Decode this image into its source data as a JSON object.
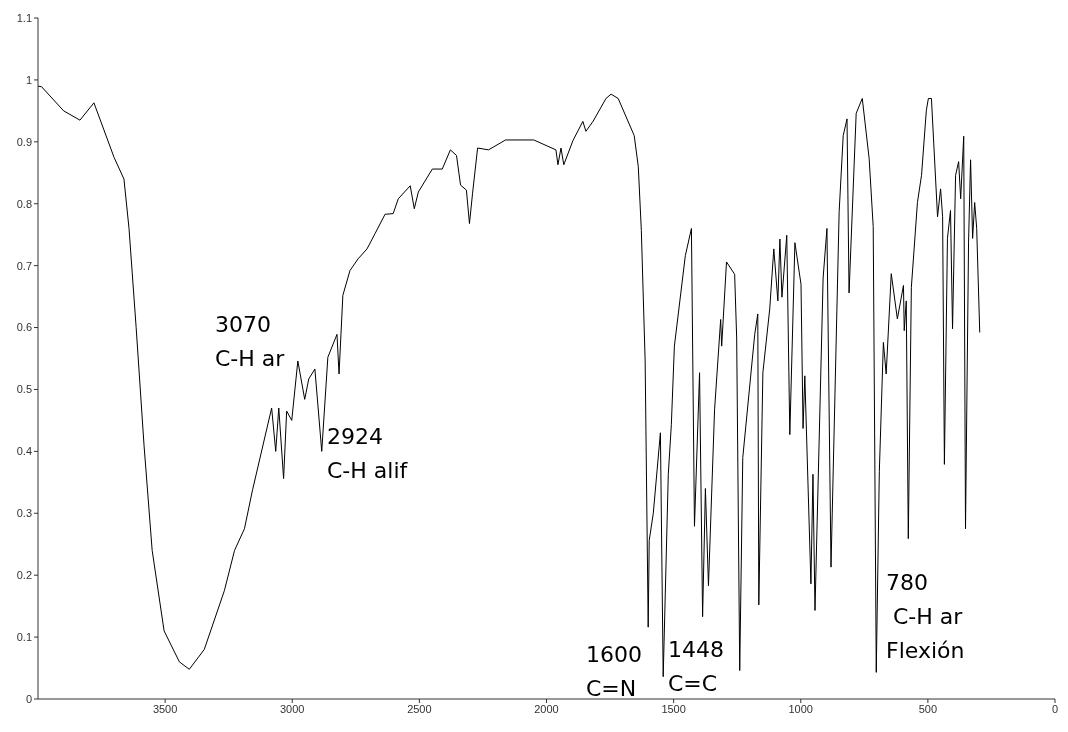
{
  "chart_data": {
    "type": "line",
    "x": [
      4000,
      3986,
      3899,
      3835,
      3780,
      3701,
      3662,
      3642,
      3614,
      3583,
      3551,
      3504,
      3444,
      3405,
      3346,
      3267,
      3227,
      3188,
      3156,
      3081,
      3065,
      3053,
      3034,
      3022,
      3002,
      2978,
      2951,
      2935,
      2911,
      2884,
      2860,
      2824,
      2816,
      2801,
      2773,
      2741,
      2706,
      2674,
      2635,
      2603,
      2583,
      2536,
      2520,
      2504,
      2449,
      2410,
      2378,
      2354,
      2338,
      2315,
      2303,
      2291,
      2271,
      2228,
      2161,
      2050,
      1963,
      1955,
      1943,
      1932,
      1896,
      1857,
      1845,
      1817,
      1766,
      1746,
      1718,
      1655,
      1639,
      1627,
      1612,
      1600,
      1596,
      1580,
      1552,
      1541,
      1521,
      1509,
      1497,
      1454,
      1430,
      1418,
      1398,
      1386,
      1375,
      1363,
      1339,
      1315,
      1311,
      1292,
      1260,
      1252,
      1240,
      1228,
      1181,
      1169,
      1165,
      1149,
      1122,
      1106,
      1090,
      1082,
      1074,
      1055,
      1043,
      1023,
      999,
      991,
      984,
      960,
      952,
      944,
      912,
      897,
      881,
      849,
      833,
      818,
      810,
      782,
      758,
      731,
      715,
      703,
      691,
      675,
      664,
      644,
      620,
      596,
      593,
      585,
      577,
      565,
      541,
      525,
      506,
      498,
      486,
      478,
      462,
      450,
      442,
      435,
      423,
      411,
      403,
      391,
      379,
      371,
      359,
      352,
      340,
      332,
      324,
      316,
      308,
      296
    ],
    "series": [
      {
        "color": "#000000",
        "values": [
          0.99,
          0.989,
          0.95,
          0.935,
          0.963,
          0.875,
          0.84,
          0.76,
          0.6,
          0.41,
          0.24,
          0.11,
          0.06,
          0.048,
          0.08,
          0.175,
          0.24,
          0.275,
          0.338,
          0.47,
          0.4,
          0.47,
          0.356,
          0.465,
          0.45,
          0.546,
          0.484,
          0.517,
          0.533,
          0.4,
          0.552,
          0.589,
          0.525,
          0.652,
          0.692,
          0.711,
          0.727,
          0.752,
          0.783,
          0.784,
          0.808,
          0.829,
          0.792,
          0.819,
          0.856,
          0.856,
          0.887,
          0.878,
          0.83,
          0.822,
          0.768,
          0.816,
          0.89,
          0.887,
          0.903,
          0.903,
          0.887,
          0.863,
          0.89,
          0.863,
          0.902,
          0.933,
          0.917,
          0.933,
          0.97,
          0.977,
          0.97,
          0.91,
          0.86,
          0.757,
          0.546,
          0.116,
          0.256,
          0.3,
          0.43,
          0.036,
          0.363,
          0.443,
          0.57,
          0.716,
          0.76,
          0.279,
          0.527,
          0.133,
          0.34,
          0.183,
          0.467,
          0.613,
          0.57,
          0.706,
          0.686,
          0.583,
          0.046,
          0.39,
          0.589,
          0.622,
          0.152,
          0.527,
          0.63,
          0.727,
          0.643,
          0.743,
          0.649,
          0.749,
          0.427,
          0.737,
          0.67,
          0.437,
          0.522,
          0.186,
          0.363,
          0.143,
          0.68,
          0.76,
          0.213,
          0.787,
          0.91,
          0.937,
          0.656,
          0.946,
          0.97,
          0.873,
          0.763,
          0.043,
          0.367,
          0.576,
          0.525,
          0.687,
          0.614,
          0.668,
          0.595,
          0.643,
          0.259,
          0.665,
          0.802,
          0.846,
          0.951,
          0.97,
          0.97,
          0.906,
          0.779,
          0.824,
          0.779,
          0.379,
          0.744,
          0.789,
          0.598,
          0.846,
          0.868,
          0.808,
          0.909,
          0.275,
          0.738,
          0.871,
          0.744,
          0.802,
          0.76,
          0.592
        ]
      }
    ],
    "xlim": [
      4000,
      0
    ],
    "xticks": [
      3500,
      3000,
      2500,
      2000,
      1500,
      1000,
      500,
      0
    ],
    "ylim": [
      0,
      1.1
    ],
    "yticks": [
      0,
      0.1,
      0.2,
      0.3,
      0.4,
      0.5,
      0.6,
      0.7,
      0.8,
      0.9,
      1,
      1.1
    ],
    "grid": false,
    "marker": "none",
    "line_style": "solid",
    "annotations": [
      "3070\nC-H ar",
      "2924\nC-H alif",
      "1600\nC=N",
      "1448\nC=C",
      "780\n C-H ar\nFlexión"
    ]
  }
}
